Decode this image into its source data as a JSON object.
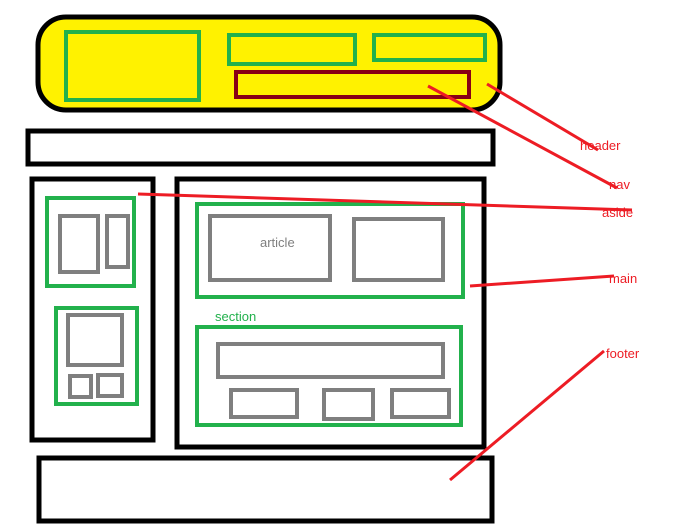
{
  "colors": {
    "black": "#000000",
    "header_fill": "#fff200",
    "green": "#22b14c",
    "gray": "#7f7f7f",
    "dark_red": "#880015",
    "red": "#ed1c24"
  },
  "labels": {
    "header": "header",
    "nav": "nav",
    "aside": "aside",
    "main": "main",
    "footer": "footer",
    "section": "section",
    "article": "article"
  }
}
